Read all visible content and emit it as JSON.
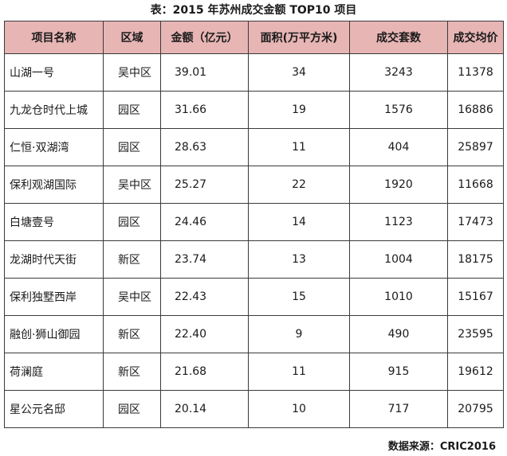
{
  "title": "表：2015 年苏州成交金额 TOP10 项目",
  "columns": [
    "项目名称",
    "区域",
    "金额（亿元）",
    "面积(万平方米)",
    "成交套数",
    "成交均价"
  ],
  "rows": [
    [
      "山湖一号",
      "吴中区",
      "39.01",
      "34",
      "3243",
      "11378"
    ],
    [
      "九龙仓时代上城",
      "园区",
      "31.66",
      "19",
      "1576",
      "16886"
    ],
    [
      "仁恒·双湖湾",
      "园区",
      "28.63",
      "11",
      "404",
      "25897"
    ],
    [
      "保利观湖国际",
      "吴中区",
      "25.27",
      "22",
      "1920",
      "11668"
    ],
    [
      "白塘壹号",
      "园区",
      "24.46",
      "14",
      "1123",
      "17473"
    ],
    [
      "龙湖时代天街",
      "新区",
      "23.74",
      "13",
      "1004",
      "18175"
    ],
    [
      "保利独墅西岸",
      "吴中区",
      "22.43",
      "15",
      "1010",
      "15167"
    ],
    [
      "融创·狮山御园",
      "新区",
      "22.40",
      "9",
      "490",
      "23595"
    ],
    [
      "荷澜庭",
      "新区",
      "21.68",
      "11",
      "915",
      "19612"
    ],
    [
      "星公元名邸",
      "园区",
      "20.14",
      "10",
      "717",
      "20795"
    ]
  ],
  "source": "数据来源：CRIC2016"
}
